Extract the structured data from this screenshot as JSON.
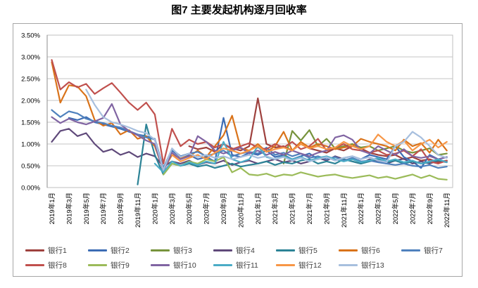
{
  "title": "图7 主要发起机构逐月回收率",
  "chart_data": {
    "type": "line",
    "title": "图7 主要发起机构逐月回收率",
    "xlabel": "",
    "ylabel": "",
    "grid": true,
    "legend_position": "bottom",
    "months_count": 47,
    "x_tick_every": 2,
    "x_tick_labels": [
      "2019年1月",
      "2019年3月",
      "2019年5月",
      "2019年7月",
      "2019年9月",
      "2019年11月",
      "2020年1月",
      "2020年3月",
      "2020年5月",
      "2020年7月",
      "2020年9月",
      "2020年11月",
      "2021年1月",
      "2021年3月",
      "2021年5月",
      "2021年7月",
      "2021年9月",
      "2021年11月",
      "2022年1月",
      "2022年3月",
      "2022年5月",
      "2022年7月",
      "2022年9月",
      "2022年11月"
    ],
    "y_axis": {
      "min": 0,
      "max": 3.5,
      "step": 0.5,
      "tick_labels": [
        "0.00%",
        "0.50%",
        "1.00%",
        "1.50%",
        "2.00%",
        "2.50%",
        "3.00%",
        "3.50%"
      ]
    },
    "colors": {
      "grid": "#c6c6c6",
      "plot_border": "#bfbfbf",
      "axis": "#8e8e8e",
      "outer_border": "#a6a6a6"
    },
    "series": [
      {
        "name": "银行1",
        "color": "#9e413e",
        "values": [
          null,
          null,
          null,
          null,
          null,
          null,
          null,
          null,
          null,
          null,
          null,
          null,
          null,
          null,
          null,
          null,
          0.95,
          0.88,
          0.92,
          0.82,
          1.0,
          0.9,
          0.85,
          0.95,
          2.05,
          1.0,
          0.92,
          0.95,
          0.85,
          1.0,
          0.9,
          0.85,
          0.8,
          0.9,
          0.85,
          0.95,
          0.9,
          0.8,
          0.75,
          0.72,
          0.75,
          0.65,
          0.7,
          0.62,
          0.65,
          0.58,
          0.62
        ]
      },
      {
        "name": "银行2",
        "color": "#3c6cb4",
        "values": [
          null,
          null,
          1.6,
          1.55,
          1.62,
          1.5,
          1.45,
          1.4,
          1.35,
          1.28,
          1.22,
          1.18,
          1.1,
          0.42,
          0.85,
          0.7,
          0.75,
          0.65,
          0.7,
          0.6,
          1.6,
          0.75,
          0.7,
          0.8,
          0.75,
          0.85,
          0.7,
          0.75,
          0.65,
          0.72,
          0.78,
          0.65,
          0.7,
          0.62,
          0.68,
          0.72,
          0.65,
          0.75,
          0.7,
          0.65,
          0.95,
          0.7,
          0.6,
          0.45,
          0.75,
          0.65,
          0.7
        ]
      },
      {
        "name": "银行3",
        "color": "#77933c",
        "values": [
          null,
          null,
          null,
          null,
          null,
          null,
          null,
          null,
          null,
          null,
          null,
          null,
          null,
          null,
          null,
          null,
          null,
          null,
          null,
          null,
          null,
          null,
          null,
          null,
          null,
          null,
          null,
          0.55,
          1.3,
          1.08,
          1.32,
          0.95,
          1.12,
          0.9,
          0.95,
          1.0,
          0.92,
          0.95,
          0.85,
          0.9,
          0.95,
          0.85,
          0.8,
          0.85,
          0.9,
          0.75,
          0.78
        ]
      },
      {
        "name": "银行4",
        "color": "#5f497a",
        "values": [
          1.05,
          1.3,
          1.35,
          1.18,
          1.25,
          1.0,
          0.82,
          0.88,
          0.75,
          0.82,
          0.7,
          0.78,
          0.72,
          0.48,
          0.6,
          0.55,
          0.62,
          0.52,
          0.58,
          0.55,
          0.62,
          0.52,
          0.58,
          0.62,
          0.55,
          0.6,
          0.65,
          0.58,
          0.62,
          0.55,
          0.6,
          0.68,
          0.62,
          0.72,
          0.65,
          0.6,
          0.55,
          0.65,
          0.6,
          0.55,
          0.62,
          0.66,
          0.55,
          0.6,
          0.55,
          0.62,
          0.58
        ]
      },
      {
        "name": "银行5",
        "color": "#2c8396",
        "values": [
          null,
          null,
          null,
          null,
          null,
          null,
          null,
          null,
          null,
          null,
          0.07,
          1.45,
          0.75,
          0.3,
          0.55,
          0.5,
          0.55,
          0.48,
          0.52,
          0.45,
          0.5,
          0.55,
          0.48,
          0.52,
          0.55,
          0.6,
          0.52,
          0.58,
          0.55,
          0.62,
          0.65,
          0.55,
          0.6,
          0.55,
          0.65,
          0.6,
          0.55,
          0.6,
          0.65,
          0.58,
          0.62,
          0.55,
          0.6,
          0.55,
          0.58,
          0.62,
          0.6
        ]
      },
      {
        "name": "银行6",
        "color": "#d9731a",
        "values": [
          2.88,
          1.95,
          2.35,
          2.32,
          2.1,
          1.55,
          1.42,
          1.48,
          1.22,
          1.32,
          1.12,
          1.18,
          0.95,
          0.4,
          0.75,
          0.68,
          0.72,
          0.85,
          0.7,
          0.95,
          1.2,
          1.65,
          0.9,
          0.85,
          1.0,
          0.82,
          0.95,
          1.28,
          0.85,
          1.05,
          0.92,
          1.0,
          0.95,
          0.88,
          0.92,
          0.95,
          1.12,
          1.05,
          1.0,
          0.95,
          0.85,
          1.1,
          0.95,
          1.02,
          0.8,
          1.1,
          0.85
        ]
      },
      {
        "name": "银行7",
        "color": "#4f81bd",
        "values": [
          1.78,
          1.62,
          1.75,
          1.7,
          1.58,
          1.52,
          1.48,
          1.42,
          1.38,
          1.3,
          1.22,
          1.15,
          1.12,
          0.45,
          0.88,
          0.72,
          0.78,
          0.82,
          0.72,
          0.78,
          0.85,
          0.72,
          0.78,
          0.82,
          0.78,
          0.92,
          0.75,
          0.8,
          0.72,
          0.78,
          0.68,
          0.72,
          0.65,
          0.7,
          0.62,
          0.68,
          0.6,
          0.62,
          0.58,
          0.55,
          0.52,
          0.55,
          0.5,
          0.48,
          0.52,
          0.45,
          0.48
        ]
      },
      {
        "name": "银行8",
        "color": "#c0504d",
        "values": [
          2.93,
          2.25,
          2.42,
          2.3,
          2.38,
          2.15,
          2.28,
          2.4,
          2.18,
          1.95,
          1.78,
          1.95,
          1.68,
          0.55,
          1.35,
          0.95,
          1.1,
          1.0,
          1.05,
          0.92,
          1.0,
          0.88,
          0.95,
          1.02,
          0.92,
          0.88,
          1.0,
          0.92,
          1.05,
          0.88,
          0.95,
          1.12,
          0.85,
          0.92,
          1.0,
          0.88,
          0.85,
          0.8,
          0.85,
          0.75,
          0.78,
          0.85,
          0.72,
          0.88,
          0.6,
          0.55,
          0.62
        ]
      },
      {
        "name": "银行9",
        "color": "#9bbb59",
        "values": [
          null,
          null,
          null,
          null,
          null,
          null,
          null,
          null,
          null,
          null,
          null,
          null,
          null,
          0.3,
          0.55,
          0.5,
          0.6,
          0.55,
          0.65,
          0.6,
          0.7,
          0.35,
          0.45,
          0.3,
          0.28,
          0.32,
          0.25,
          0.3,
          0.28,
          0.35,
          0.3,
          0.25,
          0.28,
          0.3,
          0.25,
          0.22,
          0.25,
          0.28,
          0.22,
          0.25,
          0.2,
          0.25,
          0.3,
          0.22,
          0.28,
          0.2,
          0.18
        ]
      },
      {
        "name": "银行10",
        "color": "#8064a2",
        "values": [
          1.62,
          1.48,
          1.58,
          1.5,
          1.45,
          1.52,
          1.6,
          1.92,
          1.45,
          1.3,
          1.2,
          1.08,
          1.0,
          0.38,
          0.8,
          0.65,
          0.72,
          1.18,
          1.05,
          0.85,
          0.78,
          0.85,
          0.92,
          0.78,
          0.85,
          0.75,
          0.82,
          0.75,
          0.85,
          0.78,
          0.72,
          0.8,
          0.85,
          1.15,
          1.2,
          1.1,
          0.85,
          0.78,
          0.95,
          0.85,
          0.75,
          0.88,
          0.72,
          0.68,
          0.72,
          0.65,
          0.7
        ]
      },
      {
        "name": "银行11",
        "color": "#4bacc6",
        "values": [
          null,
          null,
          null,
          null,
          null,
          null,
          null,
          null,
          null,
          null,
          null,
          null,
          0.55,
          0.35,
          0.6,
          0.5,
          0.58,
          0.52,
          0.6,
          0.55,
          1.05,
          0.65,
          0.58,
          0.65,
          0.95,
          0.7,
          0.65,
          0.72,
          0.65,
          0.7,
          0.62,
          0.68,
          0.72,
          0.65,
          0.6,
          0.65,
          0.58,
          0.62,
          0.68,
          0.6,
          0.65,
          0.58,
          0.62,
          0.55,
          0.6,
          0.65,
          0.58
        ]
      },
      {
        "name": "银行12",
        "color": "#f79646",
        "values": [
          null,
          null,
          null,
          null,
          null,
          null,
          null,
          null,
          null,
          null,
          null,
          null,
          null,
          null,
          0.75,
          0.6,
          0.68,
          0.75,
          0.65,
          0.8,
          0.9,
          0.85,
          0.78,
          0.85,
          0.95,
          0.82,
          0.88,
          0.92,
          0.85,
          1.0,
          0.9,
          0.95,
          0.88,
          0.92,
          1.05,
          0.95,
          0.88,
          0.95,
          1.22,
          1.05,
          0.95,
          1.08,
          0.85,
          1.0,
          1.1,
          0.92,
          1.05
        ]
      },
      {
        "name": "银行13",
        "color": "#a7bfde",
        "values": [
          null,
          null,
          null,
          null,
          2.25,
          1.9,
          1.62,
          1.5,
          1.45,
          1.38,
          1.3,
          1.25,
          1.1,
          0.4,
          0.9,
          0.7,
          0.78,
          0.7,
          0.75,
          0.68,
          0.72,
          0.65,
          0.7,
          0.75,
          0.68,
          0.72,
          0.65,
          0.7,
          0.62,
          0.68,
          0.6,
          0.65,
          0.7,
          0.62,
          0.68,
          0.72,
          0.65,
          0.7,
          0.62,
          0.58,
          0.95,
          1.05,
          1.28,
          1.15,
          0.95,
          0.75,
          0.68
        ]
      }
    ]
  }
}
